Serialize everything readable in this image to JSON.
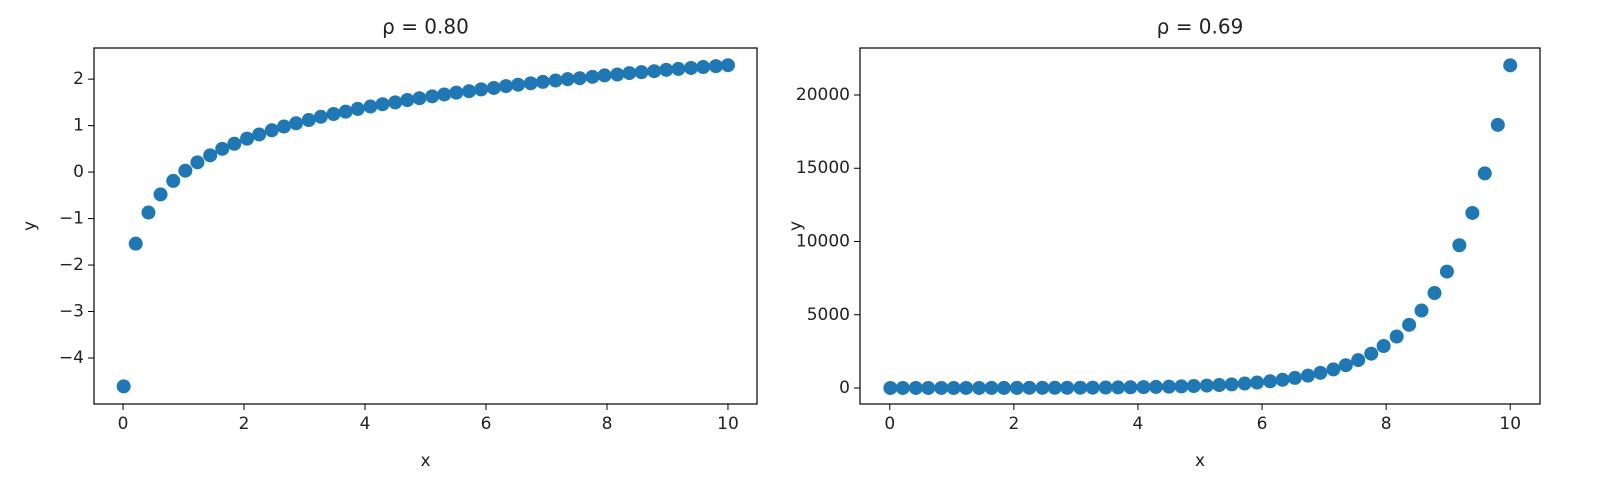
{
  "chart_data": [
    {
      "type": "scatter",
      "title": "ρ = 0.80",
      "x_label": "x",
      "y_label": "y",
      "color": "#1f77b4",
      "x": [
        0.01,
        0.21,
        0.42,
        0.62,
        0.83,
        1.03,
        1.23,
        1.44,
        1.64,
        1.84,
        2.05,
        2.25,
        2.46,
        2.66,
        2.86,
        3.07,
        3.27,
        3.48,
        3.68,
        3.88,
        4.09,
        4.29,
        4.5,
        4.7,
        4.9,
        5.11,
        5.31,
        5.51,
        5.72,
        5.92,
        6.13,
        6.33,
        6.53,
        6.74,
        6.94,
        7.15,
        7.35,
        7.55,
        7.76,
        7.96,
        8.17,
        8.37,
        8.57,
        8.78,
        8.98,
        9.18,
        9.39,
        9.59,
        9.8,
        10
      ],
      "values": [
        -4.61,
        -1.54,
        -0.87,
        -0.48,
        -0.19,
        0.03,
        0.21,
        0.36,
        0.5,
        0.61,
        0.72,
        0.81,
        0.9,
        0.98,
        1.05,
        1.12,
        1.19,
        1.25,
        1.3,
        1.36,
        1.41,
        1.46,
        1.5,
        1.55,
        1.59,
        1.63,
        1.67,
        1.71,
        1.74,
        1.78,
        1.81,
        1.85,
        1.88,
        1.91,
        1.94,
        1.97,
        2.0,
        2.02,
        2.05,
        2.08,
        2.1,
        2.13,
        2.15,
        2.17,
        2.2,
        2.22,
        2.24,
        2.26,
        2.28,
        2.3
      ],
      "xlim": [
        -0.48,
        10.48
      ],
      "ylim": [
        -4.99,
        2.67
      ],
      "xticks": [
        0,
        2,
        4,
        6,
        8,
        10
      ],
      "yticks": [
        {
          "value": -4,
          "label": "−4"
        },
        {
          "value": -3,
          "label": "−3"
        },
        {
          "value": -2,
          "label": "−2"
        },
        {
          "value": -1,
          "label": "−1"
        },
        0,
        1,
        2
      ]
    },
    {
      "type": "scatter",
      "title": "ρ = 0.69",
      "x_label": "x",
      "y_label": "y",
      "color": "#1f77b4",
      "x": [
        0.01,
        0.21,
        0.42,
        0.62,
        0.83,
        1.03,
        1.23,
        1.44,
        1.64,
        1.84,
        2.05,
        2.25,
        2.46,
        2.66,
        2.86,
        3.07,
        3.27,
        3.48,
        3.68,
        3.88,
        4.09,
        4.29,
        4.5,
        4.7,
        4.9,
        5.11,
        5.31,
        5.51,
        5.72,
        5.92,
        6.13,
        6.33,
        6.53,
        6.74,
        6.94,
        7.15,
        7.35,
        7.55,
        7.76,
        7.96,
        8.17,
        8.37,
        8.57,
        8.78,
        8.98,
        9.18,
        9.39,
        9.59,
        9.8,
        10
      ],
      "values": [
        1,
        1,
        2,
        2,
        2,
        3,
        3,
        4,
        5,
        6,
        8,
        10,
        12,
        14,
        18,
        21,
        26,
        32,
        40,
        49,
        60,
        73,
        90,
        110,
        135,
        165,
        203,
        248,
        305,
        373,
        458,
        561,
        688,
        844,
        1035,
        1269,
        1556,
        1907,
        2339,
        2867,
        3516,
        4311,
        5286,
        6481,
        7947,
        9744,
        11947,
        14649,
        17962,
        22026
      ],
      "xlim": [
        -0.48,
        10.48
      ],
      "ylim": [
        -1092,
        23208
      ],
      "xticks": [
        0,
        2,
        4,
        6,
        8,
        10
      ],
      "yticks": [
        0,
        5000,
        10000,
        15000,
        20000
      ]
    }
  ]
}
